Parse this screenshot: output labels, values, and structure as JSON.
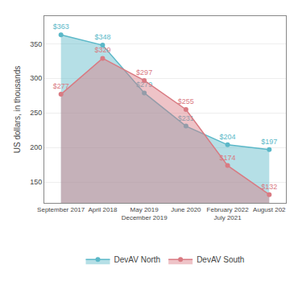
{
  "chart_data": {
    "type": "area",
    "categories": [
      "September 2017",
      "April 2018",
      "May 2019\nDecember 2019",
      "June 2020",
      "February 2022\nJuly 2021",
      "August 202"
    ],
    "series": [
      {
        "name": "DevAV North",
        "color": "#5bb8c8",
        "values": [
          363,
          348,
          279,
          231,
          204,
          197
        ],
        "value_labels": [
          "$363",
          "$348",
          "$279",
          "$231",
          "$204",
          "$197"
        ]
      },
      {
        "name": "DevAV South",
        "color": "#d97a82",
        "values": [
          277,
          329,
          297,
          255,
          174,
          132
        ],
        "value_labels": [
          "$277",
          "$329",
          "$297",
          "$255",
          "$174",
          "$132"
        ]
      }
    ],
    "ylabel": "US dollars, in thousands",
    "ylim": [
      120,
      390
    ],
    "yticks": [
      150,
      200,
      250,
      300,
      350
    ],
    "grid": true,
    "legend": "bottom",
    "data_labels": true,
    "marker": "circle"
  }
}
